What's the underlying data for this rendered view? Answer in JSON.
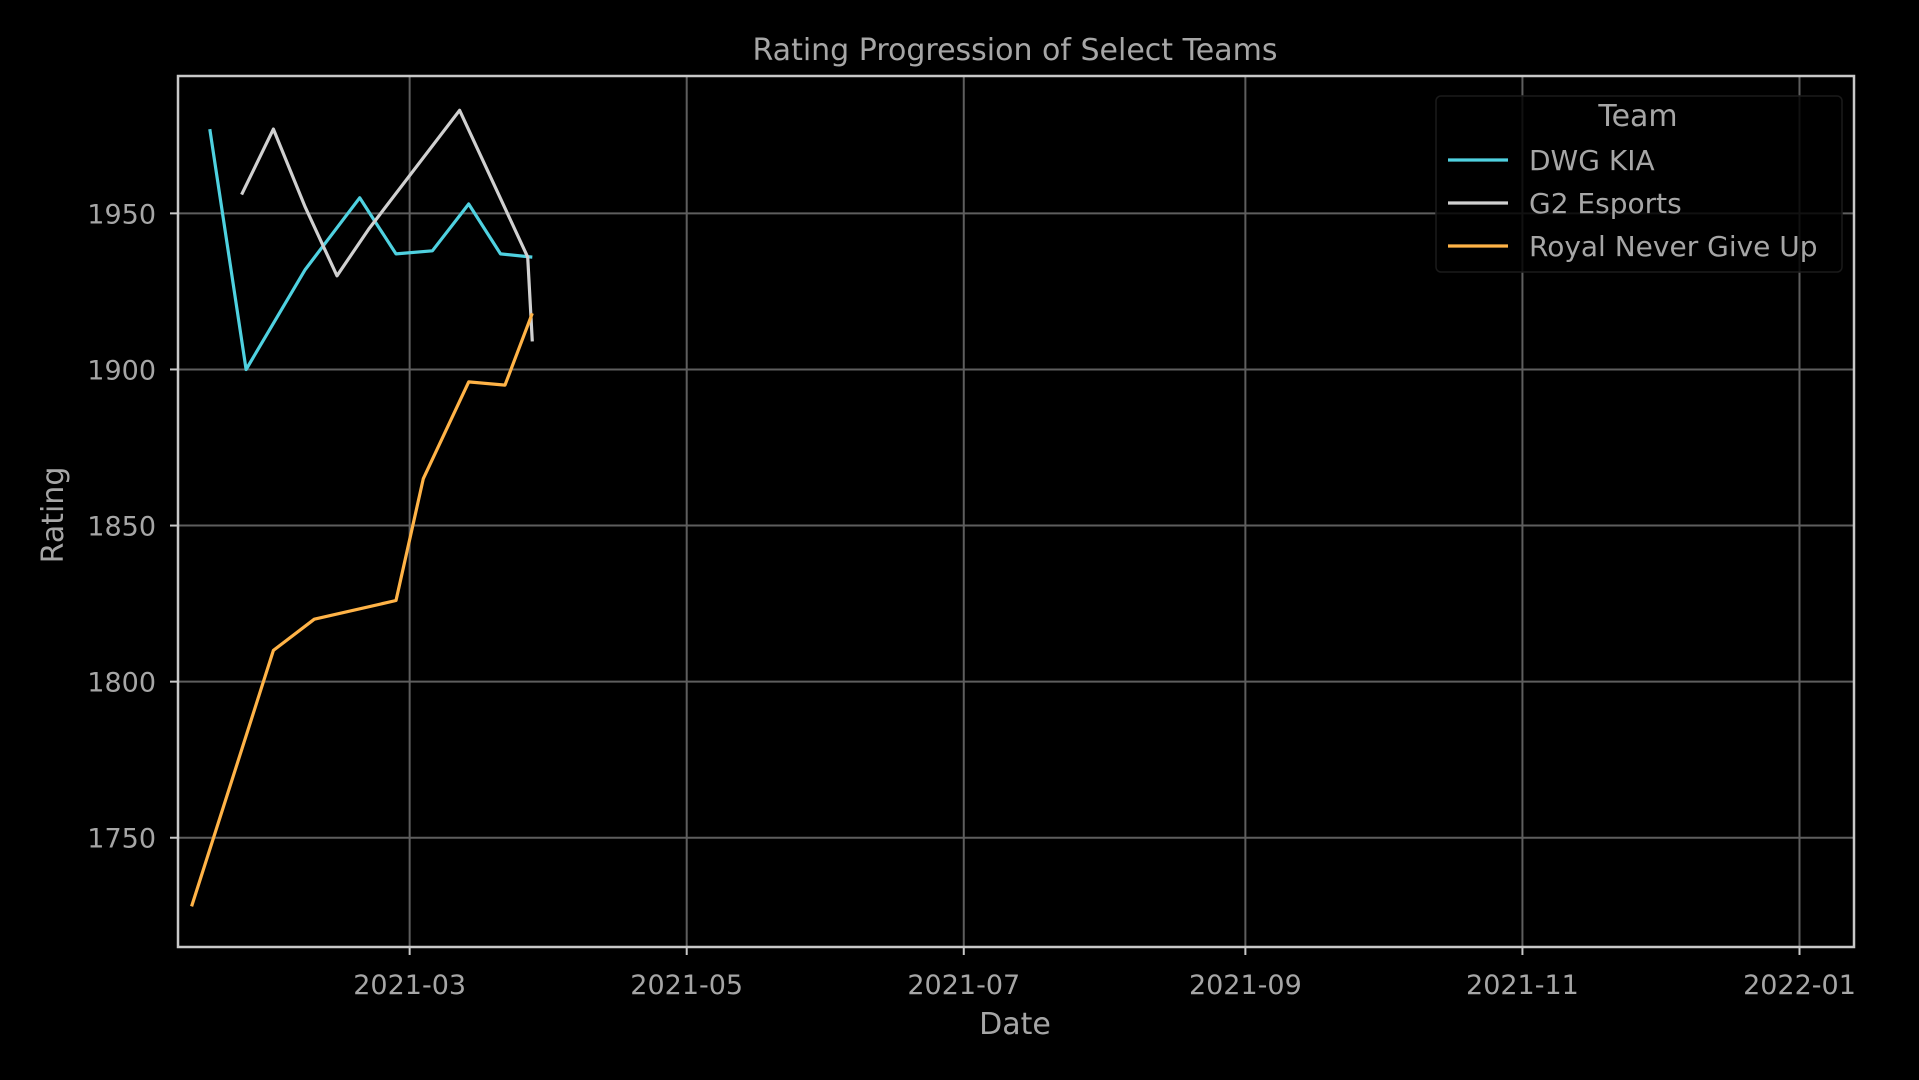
{
  "chart_data": {
    "type": "line",
    "title": "Rating Progression of Select Teams",
    "xlabel": "Date",
    "ylabel": "Rating",
    "grid": true,
    "xlim": [
      "2021-01-09",
      "2022-01-13"
    ],
    "ylim": [
      1715,
      1994
    ],
    "x_ticks": [
      {
        "date": "2021-03-01",
        "label": "2021-03"
      },
      {
        "date": "2021-05-01",
        "label": "2021-05"
      },
      {
        "date": "2021-07-01",
        "label": "2021-07"
      },
      {
        "date": "2021-09-01",
        "label": "2021-09"
      },
      {
        "date": "2021-11-01",
        "label": "2021-11"
      },
      {
        "date": "2022-01-01",
        "label": "2022-01"
      }
    ],
    "y_ticks": [
      1750,
      1800,
      1850,
      1900,
      1950
    ],
    "legend": {
      "title": "Team",
      "position": "top-right"
    },
    "series": [
      {
        "name": "DWG KIA",
        "color": "#4fd1e0",
        "points": [
          {
            "x": "2021-01-16",
            "y": 1977
          },
          {
            "x": "2021-01-24",
            "y": 1900
          },
          {
            "x": "2021-02-06",
            "y": 1932
          },
          {
            "x": "2021-02-18",
            "y": 1955
          },
          {
            "x": "2021-02-26",
            "y": 1937
          },
          {
            "x": "2021-03-06",
            "y": 1938
          },
          {
            "x": "2021-03-14",
            "y": 1953
          },
          {
            "x": "2021-03-21",
            "y": 1937
          },
          {
            "x": "2021-03-28",
            "y": 1936
          }
        ]
      },
      {
        "name": "G2 Esports",
        "color": "#d0d0d0",
        "points": [
          {
            "x": "2021-01-23",
            "y": 1956
          },
          {
            "x": "2021-01-30",
            "y": 1977
          },
          {
            "x": "2021-02-06",
            "y": 1952
          },
          {
            "x": "2021-02-13",
            "y": 1930
          },
          {
            "x": "2021-02-20",
            "y": 1945
          },
          {
            "x": "2021-03-12",
            "y": 1983
          },
          {
            "x": "2021-03-27",
            "y": 1936
          },
          {
            "x": "2021-03-28",
            "y": 1909
          }
        ]
      },
      {
        "name": "Royal Never Give Up",
        "color": "#ffb347",
        "points": [
          {
            "x": "2021-01-12",
            "y": 1728
          },
          {
            "x": "2021-01-30",
            "y": 1810
          },
          {
            "x": "2021-02-08",
            "y": 1820
          },
          {
            "x": "2021-02-26",
            "y": 1826
          },
          {
            "x": "2021-03-04",
            "y": 1865
          },
          {
            "x": "2021-03-14",
            "y": 1896
          },
          {
            "x": "2021-03-22",
            "y": 1895
          },
          {
            "x": "2021-03-28",
            "y": 1918
          }
        ]
      }
    ]
  }
}
